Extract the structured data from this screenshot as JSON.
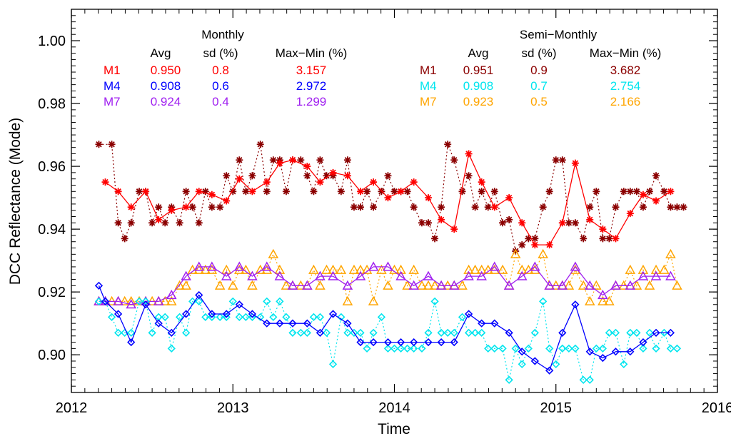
{
  "chart_data": {
    "type": "line",
    "xlabel": "Time",
    "ylabel": "DCC Reflectance (Mode)",
    "xlim": [
      2012.0,
      2016.0
    ],
    "ylim": [
      0.888,
      1.01
    ],
    "xticks": [
      2012,
      2013,
      2014,
      2015,
      2016
    ],
    "xtick_labels": [
      "2012",
      "2013",
      "2014",
      "2015",
      "2016"
    ],
    "yticks": [
      0.9,
      0.92,
      0.94,
      0.96,
      0.98,
      1.0
    ],
    "ytick_labels": [
      "0.90",
      "0.92",
      "0.94",
      "0.96",
      "0.98",
      "1.00"
    ],
    "legend": {
      "monthly": {
        "title": "Monthly",
        "headers": [
          "Avg",
          "sd (%)",
          "Max−Min (%)"
        ],
        "rows": [
          {
            "name": "M1",
            "avg": "0.950",
            "sd": "0.8",
            "maxmin": "3.157",
            "color": "#ff0000"
          },
          {
            "name": "M4",
            "avg": "0.908",
            "sd": "0.6",
            "maxmin": "2.972",
            "color": "#0000ff"
          },
          {
            "name": "M7",
            "avg": "0.924",
            "sd": "0.4",
            "maxmin": "1.299",
            "color": "#a020f0"
          }
        ]
      },
      "semi": {
        "title": "Semi−Monthly",
        "headers": [
          "Avg",
          "sd (%)",
          "Max−Min (%)"
        ],
        "rows": [
          {
            "name": "M1",
            "avg": "0.951",
            "sd": "0.9",
            "maxmin": "3.682",
            "color": "#8b0000"
          },
          {
            "name": "M4",
            "avg": "0.908",
            "sd": "0.7",
            "maxmin": "2.754",
            "color": "#00e5ee"
          },
          {
            "name": "M7",
            "avg": "0.923",
            "sd": "0.5",
            "maxmin": "2.166",
            "color": "#ffa500"
          }
        ]
      }
    },
    "series": [
      {
        "name": "M1 Semi-Monthly",
        "color": "#8b0000",
        "marker": "asterisk",
        "dash": true,
        "x": [
          2012.17,
          2012.25,
          2012.29,
          2012.33,
          2012.37,
          2012.42,
          2012.46,
          2012.5,
          2012.54,
          2012.58,
          2012.62,
          2012.67,
          2012.71,
          2012.75,
          2012.79,
          2012.83,
          2012.87,
          2012.92,
          2012.96,
          2013.0,
          2013.04,
          2013.08,
          2013.12,
          2013.17,
          2013.21,
          2013.25,
          2013.29,
          2013.33,
          2013.37,
          2013.42,
          2013.46,
          2013.5,
          2013.54,
          2013.58,
          2013.62,
          2013.67,
          2013.71,
          2013.75,
          2013.79,
          2013.83,
          2013.87,
          2013.92,
          2013.96,
          2014.0,
          2014.04,
          2014.08,
          2014.12,
          2014.17,
          2014.21,
          2014.25,
          2014.29,
          2014.33,
          2014.37,
          2014.42,
          2014.46,
          2014.5,
          2014.54,
          2014.58,
          2014.62,
          2014.67,
          2014.71,
          2014.75,
          2014.79,
          2014.83,
          2014.87,
          2014.92,
          2014.96,
          2015.0,
          2015.04,
          2015.08,
          2015.12,
          2015.17,
          2015.21,
          2015.25,
          2015.29,
          2015.33,
          2015.37,
          2015.42,
          2015.46,
          2015.5,
          2015.54,
          2015.58,
          2015.62,
          2015.67,
          2015.71,
          2015.75,
          2015.79
        ],
        "y": [
          0.967,
          0.967,
          0.942,
          0.937,
          0.942,
          0.952,
          0.952,
          0.942,
          0.947,
          0.942,
          0.947,
          0.942,
          0.952,
          0.947,
          0.942,
          0.952,
          0.947,
          0.947,
          0.957,
          0.952,
          0.962,
          0.952,
          0.957,
          0.967,
          0.952,
          0.962,
          0.962,
          0.952,
          0.962,
          0.962,
          0.957,
          0.952,
          0.962,
          0.957,
          0.957,
          0.952,
          0.962,
          0.947,
          0.947,
          0.952,
          0.947,
          0.952,
          0.957,
          0.952,
          0.952,
          0.952,
          0.947,
          0.942,
          0.942,
          0.937,
          0.947,
          0.967,
          0.962,
          0.952,
          0.957,
          0.947,
          0.952,
          0.947,
          0.952,
          0.942,
          0.943,
          0.933,
          0.935,
          0.937,
          0.937,
          0.947,
          0.952,
          0.962,
          0.962,
          0.942,
          0.942,
          0.937,
          0.947,
          0.952,
          0.937,
          0.937,
          0.947,
          0.952,
          0.952,
          0.952,
          0.947,
          0.952,
          0.957,
          0.952,
          0.947,
          0.947,
          0.947
        ]
      },
      {
        "name": "M1 Monthly",
        "color": "#ff0000",
        "marker": "asterisk",
        "dash": false,
        "x": [
          2012.21,
          2012.29,
          2012.37,
          2012.46,
          2012.54,
          2012.62,
          2012.71,
          2012.79,
          2012.87,
          2012.96,
          2013.04,
          2013.12,
          2013.21,
          2013.29,
          2013.37,
          2013.46,
          2013.54,
          2013.62,
          2013.71,
          2013.79,
          2013.87,
          2013.96,
          2014.04,
          2014.12,
          2014.21,
          2014.29,
          2014.37,
          2014.46,
          2014.54,
          2014.62,
          2014.71,
          2014.79,
          2014.87,
          2014.96,
          2015.04,
          2015.12,
          2015.21,
          2015.29,
          2015.37,
          2015.46,
          2015.54,
          2015.62,
          2015.71
        ],
        "y": [
          0.955,
          0.952,
          0.947,
          0.952,
          0.943,
          0.946,
          0.947,
          0.952,
          0.951,
          0.949,
          0.956,
          0.952,
          0.955,
          0.961,
          0.962,
          0.96,
          0.955,
          0.958,
          0.957,
          0.952,
          0.955,
          0.95,
          0.952,
          0.955,
          0.95,
          0.943,
          0.94,
          0.964,
          0.955,
          0.947,
          0.95,
          0.942,
          0.935,
          0.935,
          0.942,
          0.961,
          0.943,
          0.94,
          0.937,
          0.945,
          0.951,
          0.949,
          0.952
        ]
      },
      {
        "name": "M7 Semi-Monthly",
        "color": "#ffa500",
        "marker": "triangle",
        "dash": true,
        "x": [
          2012.17,
          2012.21,
          2012.25,
          2012.29,
          2012.33,
          2012.37,
          2012.42,
          2012.46,
          2012.5,
          2012.54,
          2012.58,
          2012.62,
          2012.67,
          2012.71,
          2012.75,
          2012.79,
          2012.83,
          2012.87,
          2012.92,
          2012.96,
          2013.0,
          2013.04,
          2013.08,
          2013.12,
          2013.17,
          2013.21,
          2013.25,
          2013.29,
          2013.33,
          2013.37,
          2013.42,
          2013.46,
          2013.5,
          2013.54,
          2013.58,
          2013.62,
          2013.67,
          2013.71,
          2013.75,
          2013.79,
          2013.83,
          2013.87,
          2013.92,
          2013.96,
          2014.0,
          2014.04,
          2014.08,
          2014.12,
          2014.17,
          2014.21,
          2014.25,
          2014.29,
          2014.33,
          2014.37,
          2014.42,
          2014.46,
          2014.5,
          2014.54,
          2014.58,
          2014.62,
          2014.67,
          2014.71,
          2014.75,
          2014.79,
          2014.83,
          2014.87,
          2014.92,
          2014.96,
          2015.0,
          2015.04,
          2015.08,
          2015.12,
          2015.17,
          2015.21,
          2015.25,
          2015.29,
          2015.33,
          2015.37,
          2015.42,
          2015.46,
          2015.5,
          2015.54,
          2015.58,
          2015.62,
          2015.67,
          2015.71,
          2015.75
        ],
        "y": [
          0.917,
          0.917,
          0.917,
          0.917,
          0.917,
          0.917,
          0.917,
          0.917,
          0.917,
          0.917,
          0.917,
          0.917,
          0.922,
          0.922,
          0.927,
          0.927,
          0.927,
          0.927,
          0.922,
          0.927,
          0.922,
          0.927,
          0.927,
          0.922,
          0.927,
          0.927,
          0.932,
          0.927,
          0.922,
          0.922,
          0.922,
          0.922,
          0.927,
          0.922,
          0.927,
          0.927,
          0.927,
          0.917,
          0.927,
          0.927,
          0.927,
          0.917,
          0.927,
          0.922,
          0.927,
          0.927,
          0.922,
          0.927,
          0.922,
          0.922,
          0.922,
          0.922,
          0.922,
          0.922,
          0.922,
          0.927,
          0.927,
          0.927,
          0.927,
          0.927,
          0.927,
          0.922,
          0.932,
          0.927,
          0.927,
          0.927,
          0.932,
          0.922,
          0.922,
          0.922,
          0.922,
          0.927,
          0.922,
          0.917,
          0.922,
          0.917,
          0.917,
          0.922,
          0.922,
          0.927,
          0.922,
          0.927,
          0.922,
          0.927,
          0.927,
          0.932,
          0.922
        ]
      },
      {
        "name": "M7 Monthly",
        "color": "#a020f0",
        "marker": "triangle",
        "dash": false,
        "x": [
          2012.17,
          2012.21,
          2012.29,
          2012.37,
          2012.46,
          2012.54,
          2012.62,
          2012.71,
          2012.79,
          2012.87,
          2012.96,
          2013.04,
          2013.12,
          2013.21,
          2013.29,
          2013.37,
          2013.46,
          2013.54,
          2013.62,
          2013.71,
          2013.79,
          2013.87,
          2013.96,
          2014.04,
          2014.12,
          2014.21,
          2014.29,
          2014.37,
          2014.46,
          2014.54,
          2014.62,
          2014.71,
          2014.79,
          2014.87,
          2014.96,
          2015.04,
          2015.12,
          2015.21,
          2015.29,
          2015.37,
          2015.46,
          2015.54,
          2015.62,
          2015.71
        ],
        "y": [
          0.917,
          0.917,
          0.917,
          0.916,
          0.917,
          0.917,
          0.919,
          0.925,
          0.928,
          0.928,
          0.925,
          0.928,
          0.925,
          0.928,
          0.925,
          0.922,
          0.922,
          0.925,
          0.925,
          0.922,
          0.925,
          0.928,
          0.928,
          0.925,
          0.922,
          0.925,
          0.922,
          0.922,
          0.925,
          0.925,
          0.928,
          0.922,
          0.925,
          0.928,
          0.922,
          0.922,
          0.928,
          0.922,
          0.919,
          0.922,
          0.922,
          0.925,
          0.925,
          0.925
        ]
      },
      {
        "name": "M4 Semi-Monthly",
        "color": "#00e5ee",
        "marker": "diamond",
        "dash": true,
        "x": [
          2012.17,
          2012.21,
          2012.25,
          2012.29,
          2012.33,
          2012.37,
          2012.42,
          2012.46,
          2012.5,
          2012.54,
          2012.58,
          2012.62,
          2012.67,
          2012.71,
          2012.75,
          2012.79,
          2012.83,
          2012.87,
          2012.92,
          2012.96,
          2013.0,
          2013.04,
          2013.08,
          2013.12,
          2013.17,
          2013.21,
          2013.25,
          2013.29,
          2013.33,
          2013.37,
          2013.42,
          2013.46,
          2013.5,
          2013.54,
          2013.58,
          2013.62,
          2013.67,
          2013.71,
          2013.75,
          2013.79,
          2013.83,
          2013.87,
          2013.92,
          2013.96,
          2014.0,
          2014.04,
          2014.08,
          2014.12,
          2014.17,
          2014.21,
          2014.25,
          2014.29,
          2014.33,
          2014.37,
          2014.42,
          2014.46,
          2014.5,
          2014.54,
          2014.58,
          2014.62,
          2014.67,
          2014.71,
          2014.75,
          2014.79,
          2014.83,
          2014.87,
          2014.92,
          2014.96,
          2015.0,
          2015.04,
          2015.08,
          2015.12,
          2015.17,
          2015.21,
          2015.25,
          2015.29,
          2015.33,
          2015.37,
          2015.42,
          2015.46,
          2015.5,
          2015.54,
          2015.58,
          2015.62,
          2015.67,
          2015.71,
          2015.75
        ],
        "y": [
          0.917,
          0.917,
          0.912,
          0.907,
          0.907,
          0.907,
          0.917,
          0.917,
          0.907,
          0.912,
          0.912,
          0.902,
          0.912,
          0.907,
          0.917,
          0.917,
          0.912,
          0.912,
          0.912,
          0.912,
          0.917,
          0.912,
          0.912,
          0.912,
          0.912,
          0.917,
          0.912,
          0.917,
          0.912,
          0.907,
          0.907,
          0.907,
          0.912,
          0.912,
          0.907,
          0.897,
          0.912,
          0.907,
          0.907,
          0.907,
          0.902,
          0.907,
          0.912,
          0.902,
          0.902,
          0.902,
          0.902,
          0.902,
          0.902,
          0.907,
          0.917,
          0.907,
          0.907,
          0.907,
          0.912,
          0.907,
          0.907,
          0.907,
          0.902,
          0.902,
          0.902,
          0.892,
          0.902,
          0.897,
          0.902,
          0.907,
          0.917,
          0.902,
          0.897,
          0.902,
          0.902,
          0.902,
          0.892,
          0.892,
          0.902,
          0.902,
          0.907,
          0.907,
          0.897,
          0.907,
          0.907,
          0.902,
          0.907,
          0.902,
          0.907,
          0.902,
          0.902
        ]
      },
      {
        "name": "M4 Monthly",
        "color": "#0000ff",
        "marker": "diamond",
        "dash": false,
        "x": [
          2012.17,
          2012.21,
          2012.29,
          2012.37,
          2012.46,
          2012.54,
          2012.62,
          2012.71,
          2012.79,
          2012.87,
          2012.96,
          2013.04,
          2013.12,
          2013.21,
          2013.29,
          2013.37,
          2013.46,
          2013.54,
          2013.62,
          2013.71,
          2013.79,
          2013.87,
          2013.96,
          2014.04,
          2014.12,
          2014.21,
          2014.29,
          2014.37,
          2014.46,
          2014.54,
          2014.62,
          2014.71,
          2014.79,
          2014.87,
          2014.96,
          2015.04,
          2015.12,
          2015.21,
          2015.29,
          2015.37,
          2015.46,
          2015.54,
          2015.62,
          2015.71
        ],
        "y": [
          0.922,
          0.917,
          0.913,
          0.904,
          0.916,
          0.91,
          0.907,
          0.913,
          0.919,
          0.913,
          0.913,
          0.916,
          0.913,
          0.91,
          0.91,
          0.91,
          0.91,
          0.907,
          0.913,
          0.91,
          0.904,
          0.904,
          0.904,
          0.904,
          0.904,
          0.904,
          0.904,
          0.904,
          0.913,
          0.91,
          0.91,
          0.907,
          0.901,
          0.898,
          0.895,
          0.907,
          0.916,
          0.901,
          0.899,
          0.901,
          0.901,
          0.904,
          0.907,
          0.907
        ]
      }
    ]
  }
}
